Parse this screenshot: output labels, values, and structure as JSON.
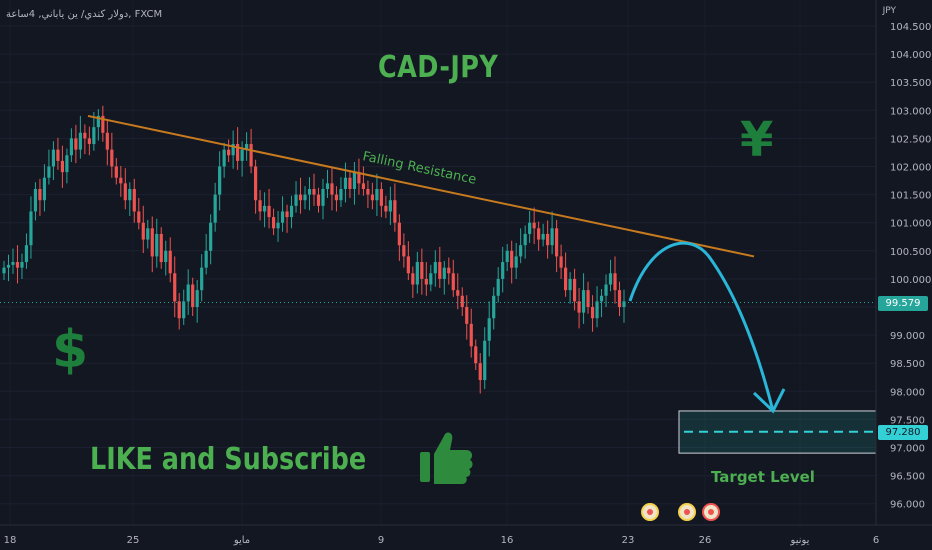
{
  "header": {
    "ticker": "دولار كندي/ ين ياباني, 4ساعة, FXCM",
    "currency": "JPY"
  },
  "annotations": {
    "title": "CAD-JPY",
    "resistance_label": "Falling Resistance",
    "like_text": "LIKE and Subscribe",
    "target_label": "Target Level",
    "yen_symbol": "¥",
    "dollar_symbol": "$",
    "icons": [
      "thumbs-up-icon",
      "event-flag-icon"
    ]
  },
  "colors": {
    "background": "#131722",
    "up": "#26a69a",
    "down": "#ef5350",
    "resistance": "#c77a1e",
    "projection": "#29b6d8",
    "text_green": "#4caf50",
    "price_tag": "#26a69a",
    "target_tag": "#33d1d6"
  },
  "chart_data": {
    "type": "candlestick",
    "symbol": "CADJPY",
    "timeframe": "4h",
    "ylim": [
      95.9,
      104.6
    ],
    "y_ticks": [
      "104.500",
      "104.000",
      "103.500",
      "103.000",
      "102.500",
      "102.000",
      "101.500",
      "101.000",
      "100.500",
      "100.000",
      "99.500",
      "99.000",
      "98.500",
      "98.000",
      "97.500",
      "97.000",
      "96.500",
      "96.000"
    ],
    "x_ticks": [
      "18",
      "25",
      "مايو",
      "9",
      "16",
      "23",
      "26",
      "يونيو",
      "6"
    ],
    "current_price": "99.579",
    "target_price": "97.280",
    "resistance_line": {
      "start": 102.9,
      "end": 100.4
    },
    "target_zone": [
      96.9,
      97.65
    ],
    "projected_low": 97.65,
    "closes": [
      100.2,
      100.25,
      100.3,
      100.2,
      100.3,
      100.6,
      101.2,
      101.6,
      101.4,
      101.8,
      102.0,
      102.3,
      102.1,
      101.9,
      102.2,
      102.5,
      102.3,
      102.6,
      102.5,
      102.4,
      102.7,
      102.9,
      102.6,
      102.3,
      102.0,
      101.8,
      101.7,
      101.4,
      101.6,
      101.2,
      101.0,
      100.7,
      100.9,
      100.4,
      100.8,
      100.3,
      100.5,
      100.1,
      99.6,
      99.3,
      99.6,
      99.9,
      99.5,
      99.8,
      100.2,
      100.5,
      101.0,
      101.5,
      102.0,
      102.3,
      102.2,
      102.4,
      102.1,
      102.3,
      102.4,
      102.0,
      101.4,
      101.2,
      101.3,
      101.1,
      100.9,
      101.0,
      101.2,
      101.1,
      101.3,
      101.5,
      101.4,
      101.5,
      101.6,
      101.5,
      101.3,
      101.6,
      101.7,
      101.5,
      101.4,
      101.6,
      101.8,
      101.6,
      101.9,
      101.7,
      101.6,
      101.5,
      101.4,
      101.6,
      101.3,
      101.2,
      101.4,
      101.0,
      100.6,
      100.4,
      100.1,
      99.9,
      100.3,
      100.0,
      99.9,
      100.1,
      100.3,
      100.0,
      100.2,
      100.1,
      99.8,
      99.7,
      99.5,
      99.2,
      98.8,
      98.5,
      98.2,
      98.9,
      99.3,
      99.7,
      100.0,
      100.3,
      100.5,
      100.2,
      100.4,
      100.6,
      100.8,
      101.0,
      100.9,
      100.7,
      100.8,
      100.6,
      100.9,
      100.4,
      100.2,
      99.8,
      100.0,
      99.6,
      99.4,
      99.8,
      99.5,
      99.3,
      99.6,
      99.7,
      99.9,
      100.1,
      99.8,
      99.5,
      99.6
    ]
  }
}
